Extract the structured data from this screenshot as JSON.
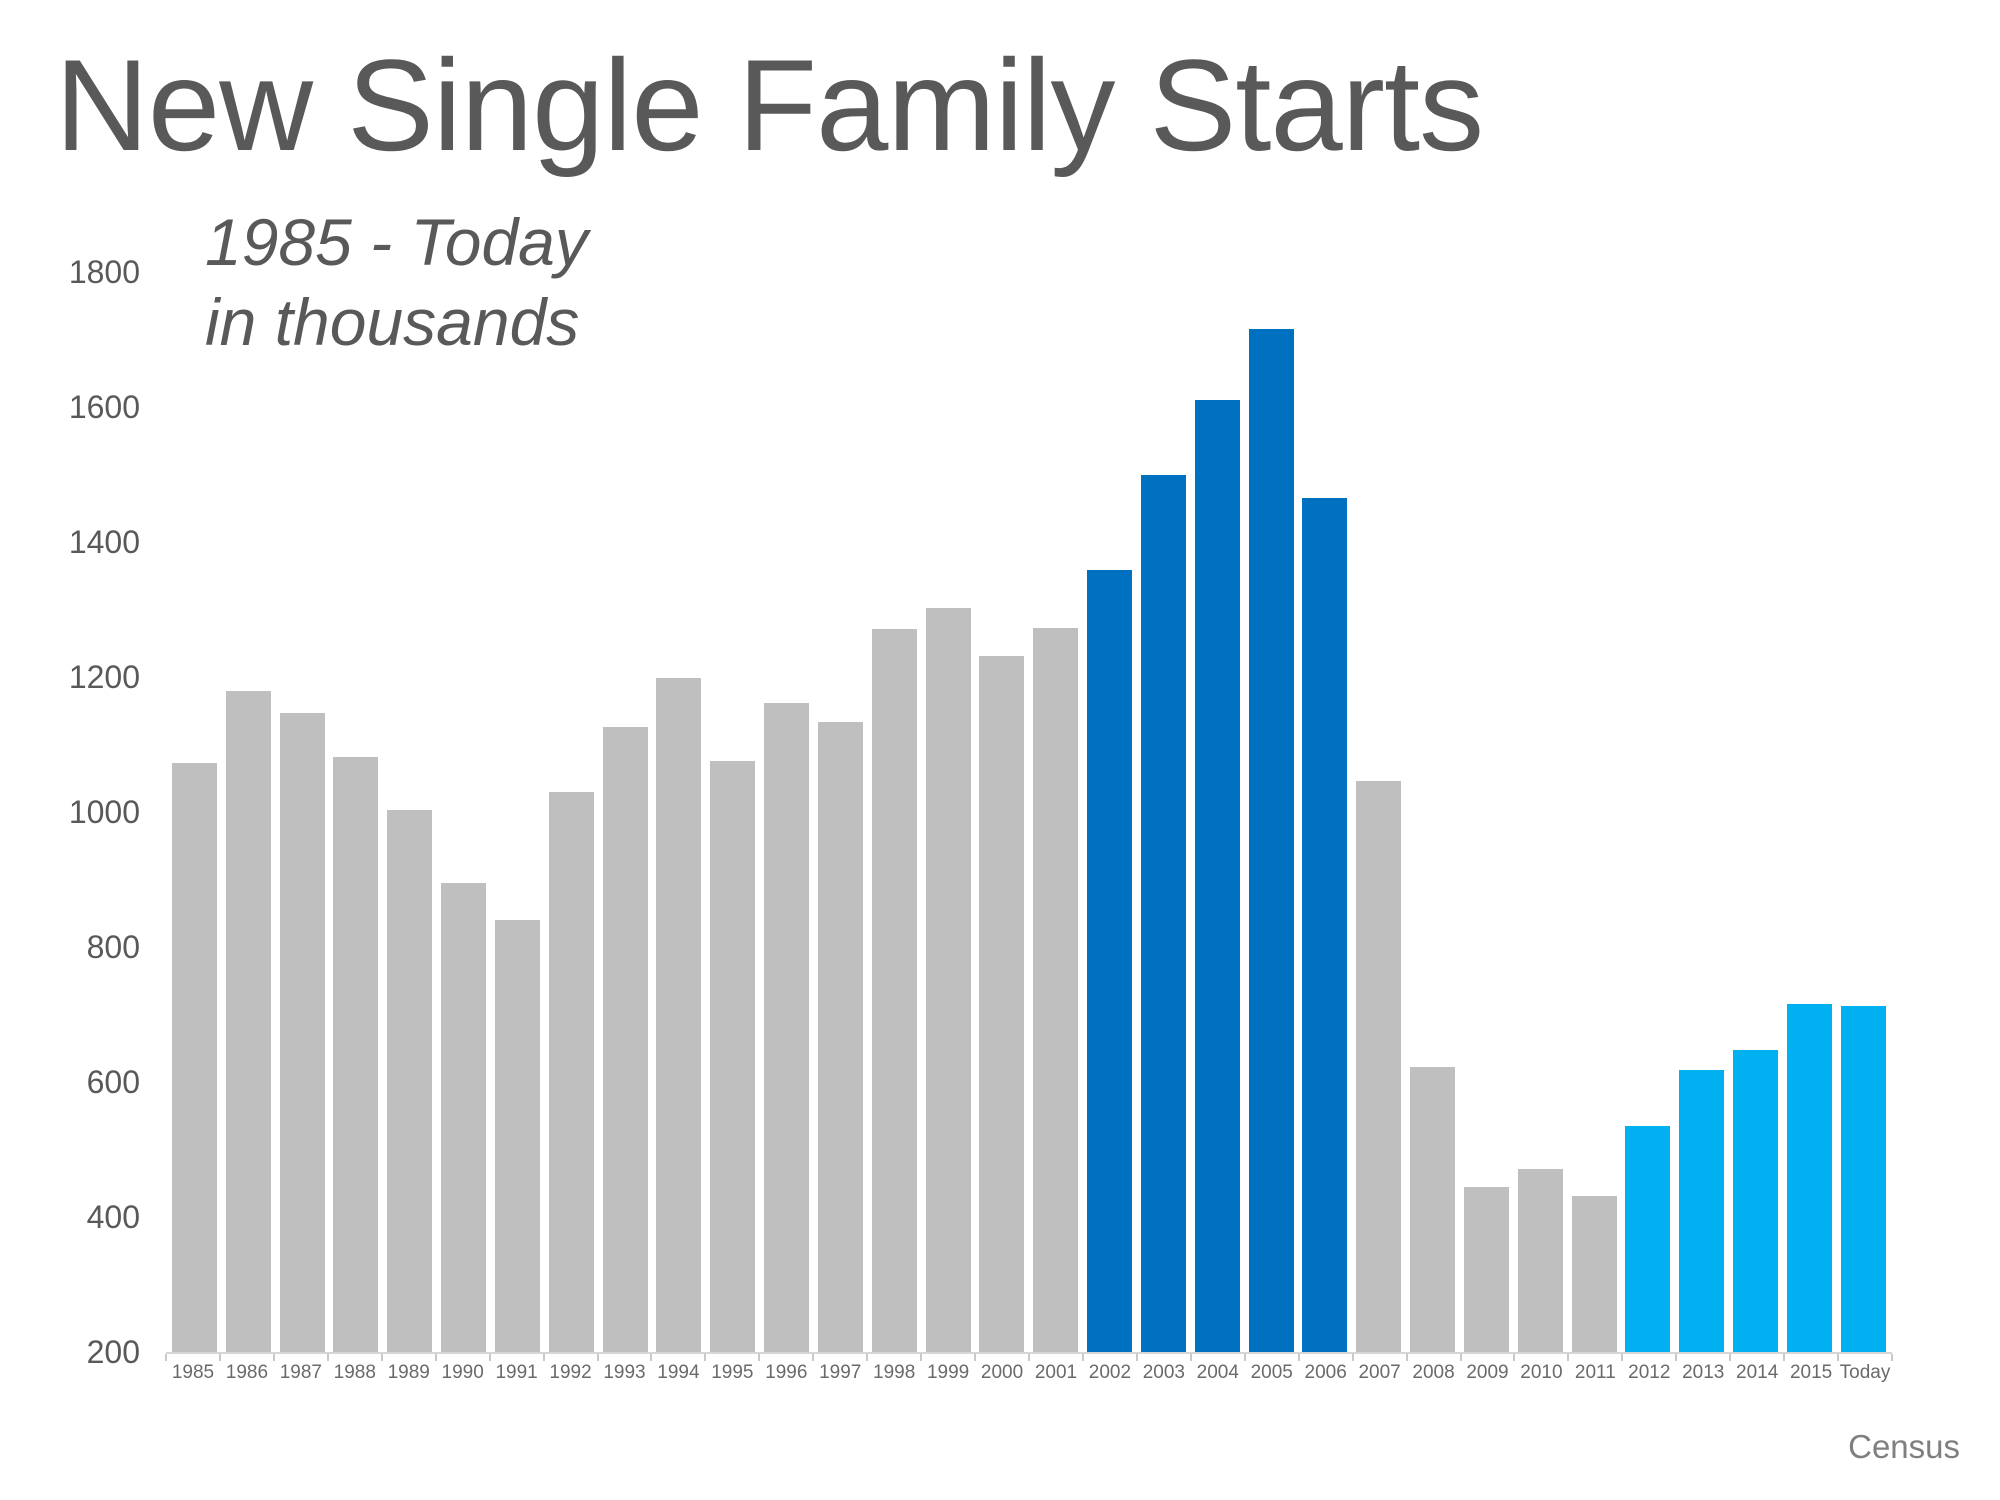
{
  "page": {
    "title": "New Single Family Starts",
    "subtitle_line1": "1985 - Today",
    "subtitle_line2": "in thousands",
    "source": "Census"
  },
  "colors": {
    "gray_bar": "#BFBFBF",
    "dark_blue_bar": "#0070C0",
    "light_blue_bar": "#00B0F0",
    "title_text": "#595959",
    "axis_label_text": "#595959",
    "x_label_text": "#6A6A6A",
    "source_text": "#7F7F7F",
    "axis_line": "#D6D6D6"
  },
  "chart_data": {
    "type": "bar",
    "title": "New Single Family Starts",
    "subtitle": "1985 - Today in thousands",
    "unit": "thousands of single family housing starts",
    "categories": [
      "1985",
      "1986",
      "1987",
      "1988",
      "1989",
      "1990",
      "1991",
      "1992",
      "1993",
      "1994",
      "1995",
      "1996",
      "1997",
      "1998",
      "1999",
      "2000",
      "2001",
      "2002",
      "2003",
      "2004",
      "2005",
      "2006",
      "2007",
      "2008",
      "2009",
      "2010",
      "2011",
      "2012",
      "2013",
      "2014",
      "2015",
      "Today"
    ],
    "values": [
      1072,
      1179,
      1146,
      1081,
      1003,
      895,
      840,
      1030,
      1126,
      1198,
      1076,
      1161,
      1134,
      1271,
      1302,
      1231,
      1273,
      1359,
      1499,
      1611,
      1716,
      1465,
      1046,
      622,
      445,
      471,
      431,
      535,
      618,
      648,
      715,
      713
    ],
    "bar_color_keys": [
      "gray",
      "gray",
      "gray",
      "gray",
      "gray",
      "gray",
      "gray",
      "gray",
      "gray",
      "gray",
      "gray",
      "gray",
      "gray",
      "gray",
      "gray",
      "gray",
      "gray",
      "blue",
      "blue",
      "blue",
      "blue",
      "blue",
      "gray",
      "gray",
      "gray",
      "gray",
      "gray",
      "lightblue",
      "lightblue",
      "lightblue",
      "lightblue",
      "lightblue"
    ],
    "palette": {
      "gray": "#BFBFBF",
      "blue": "#0070C0",
      "lightblue": "#00B0F0"
    },
    "color_groups": [
      {
        "years": "1985-2001",
        "color": "#BFBFBF"
      },
      {
        "years": "2002-2006",
        "color": "#0070C0"
      },
      {
        "years": "2007-2011",
        "color": "#BFBFBF"
      },
      {
        "years": "2012-Today",
        "color": "#00B0F0"
      }
    ],
    "ylim": [
      200,
      1800
    ],
    "yticks": [
      1800,
      1600,
      1400,
      1200,
      1000,
      800,
      600,
      400,
      200
    ],
    "grid": false,
    "legend_position": "none",
    "source": "Census"
  }
}
